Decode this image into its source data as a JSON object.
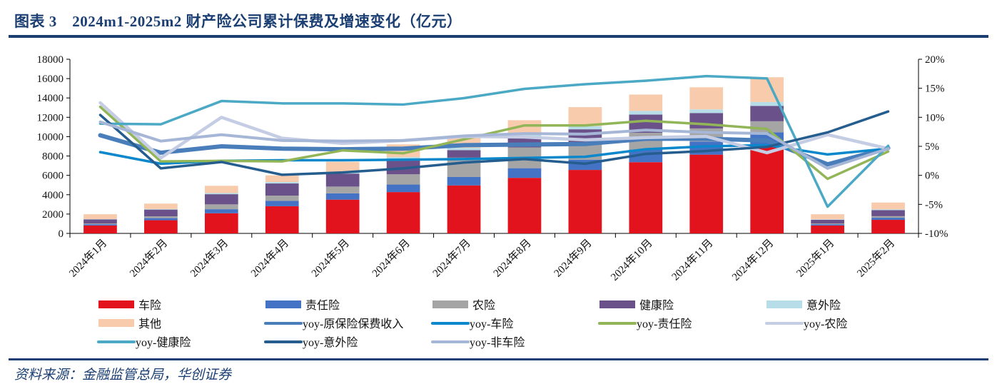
{
  "header": {
    "title": "图表 3　2024m1-2025m2 财产险公司累计保费及增速变化（亿元）"
  },
  "footer": {
    "source": "资料来源：金融监管总局，华创证券"
  },
  "chart_data": {
    "type": "bar",
    "title": "2024m1-2025m2 财产险公司累计保费及增速变化（亿元）",
    "xlabel": "",
    "ylabel": "",
    "categories": [
      "2024年1月",
      "2024年2月",
      "2024年3月",
      "2024年4月",
      "2024年5月",
      "2024年6月",
      "2024年7月",
      "2024年8月",
      "2024年9月",
      "2024年10月",
      "2024年11月",
      "2024年12月",
      "2025年1月",
      "2025年2月"
    ],
    "left_axis": {
      "min": 0,
      "max": 18000,
      "step": 2000,
      "ticks": [
        "0",
        "2000",
        "4000",
        "6000",
        "8000",
        "10000",
        "12000",
        "14000",
        "16000",
        "18000"
      ]
    },
    "right_axis": {
      "min": -10,
      "max": 20,
      "step": 5,
      "ticks": [
        "-10%",
        "-5%",
        "0%",
        "5%",
        "10%",
        "15%",
        "20%"
      ]
    },
    "grid": false,
    "legend_position": "bottom",
    "bar_series": [
      {
        "name": "车险",
        "color": "#e3131e",
        "values": [
          820,
          1360,
          2080,
          2810,
          3490,
          4270,
          4960,
          5740,
          6560,
          7360,
          8140,
          8950,
          820,
          1400
        ]
      },
      {
        "name": "责任险",
        "color": "#4472c4",
        "values": [
          130,
          220,
          420,
          550,
          650,
          780,
          870,
          1000,
          1060,
          1300,
          1360,
          1500,
          130,
          220
        ]
      },
      {
        "name": "农险",
        "color": "#a5a5a5",
        "values": [
          80,
          180,
          500,
          550,
          700,
          1060,
          2000,
          2150,
          1700,
          1740,
          1350,
          1140,
          80,
          160
        ]
      },
      {
        "name": "健康险",
        "color": "#6a5189",
        "values": [
          410,
          700,
          1050,
          1250,
          1340,
          1560,
          780,
          1020,
          1440,
          1880,
          1590,
          1590,
          380,
          620
        ]
      },
      {
        "name": "意外险",
        "color": "#b7dde8",
        "values": [
          40,
          60,
          120,
          150,
          190,
          220,
          230,
          260,
          330,
          380,
          380,
          400,
          50,
          90
        ]
      },
      {
        "name": "其他",
        "color": "#f7cbac",
        "values": [
          500,
          560,
          750,
          690,
          1030,
          1310,
          1160,
          1530,
          1960,
          1690,
          2280,
          2560,
          520,
          700
        ]
      }
    ],
    "line_series": [
      {
        "name": "yoy-原保险保费收入",
        "color": "#4a7ebb",
        "width": 6,
        "values": [
          6.9,
          3.9,
          5.0,
          4.6,
          4.5,
          4.6,
          5.2,
          5.3,
          5.4,
          6.3,
          6.3,
          6.0,
          1.9,
          4.7
        ]
      },
      {
        "name": "yoy-车险",
        "color": "#0b87cb",
        "width": 3.5,
        "values": [
          4.0,
          2.0,
          2.5,
          2.6,
          2.6,
          2.7,
          2.8,
          3.0,
          3.2,
          4.5,
          5.0,
          5.2,
          3.6,
          4.6
        ]
      },
      {
        "name": "yoy-责任险",
        "color": "#92b558",
        "width": 3.5,
        "values": [
          11.8,
          2.4,
          2.5,
          2.4,
          4.3,
          3.8,
          6.2,
          8.6,
          8.6,
          9.4,
          8.8,
          8.0,
          -0.6,
          4.1
        ]
      },
      {
        "name": "yoy-农险",
        "color": "#c5cde5",
        "width": 4.5,
        "values": [
          12.5,
          3.0,
          10.0,
          6.4,
          5.5,
          6.0,
          6.7,
          6.6,
          6.1,
          6.5,
          6.7,
          3.9,
          7.0,
          4.6
        ]
      },
      {
        "name": "yoy-健康险",
        "color": "#4ba9c5",
        "width": 3.5,
        "values": [
          8.9,
          8.8,
          12.8,
          12.4,
          12.4,
          12.2,
          13.3,
          14.9,
          15.7,
          16.3,
          17.1,
          16.7,
          -5.4,
          5.1
        ]
      },
      {
        "name": "yoy-意外险",
        "color": "#255d8e",
        "width": 3.5,
        "values": [
          10.4,
          1.2,
          2.3,
          0.1,
          0.5,
          1.2,
          2.2,
          2.8,
          2.0,
          3.7,
          4.2,
          4.9,
          7.4,
          11.0
        ]
      },
      {
        "name": "yoy-非车险",
        "color": "#a6b6d6",
        "width": 4,
        "values": [
          9.2,
          5.9,
          7.0,
          6.0,
          5.9,
          6.0,
          6.8,
          7.2,
          7.1,
          7.8,
          7.4,
          7.2,
          1.2,
          4.6
        ]
      }
    ],
    "legend": [
      {
        "label": "车险",
        "kind": "bar",
        "color": "#e3131e"
      },
      {
        "label": "责任险",
        "kind": "bar",
        "color": "#4472c4"
      },
      {
        "label": "农险",
        "kind": "bar",
        "color": "#a5a5a5"
      },
      {
        "label": "健康险",
        "kind": "bar",
        "color": "#6a5189"
      },
      {
        "label": "意外险",
        "kind": "bar",
        "color": "#b7dde8"
      },
      {
        "label": "其他",
        "kind": "bar",
        "color": "#f7cbac"
      },
      {
        "label": "yoy-原保险保费收入",
        "kind": "line",
        "color": "#4a7ebb"
      },
      {
        "label": "yoy-车险",
        "kind": "line",
        "color": "#0b87cb"
      },
      {
        "label": "yoy-责任险",
        "kind": "line",
        "color": "#92b558"
      },
      {
        "label": "yoy-农险",
        "kind": "line",
        "color": "#c5cde5"
      },
      {
        "label": "yoy-健康险",
        "kind": "line",
        "color": "#4ba9c5"
      },
      {
        "label": "yoy-意外险",
        "kind": "line",
        "color": "#255d8e"
      },
      {
        "label": "yoy-非车险",
        "kind": "line",
        "color": "#a6b6d6"
      }
    ]
  }
}
